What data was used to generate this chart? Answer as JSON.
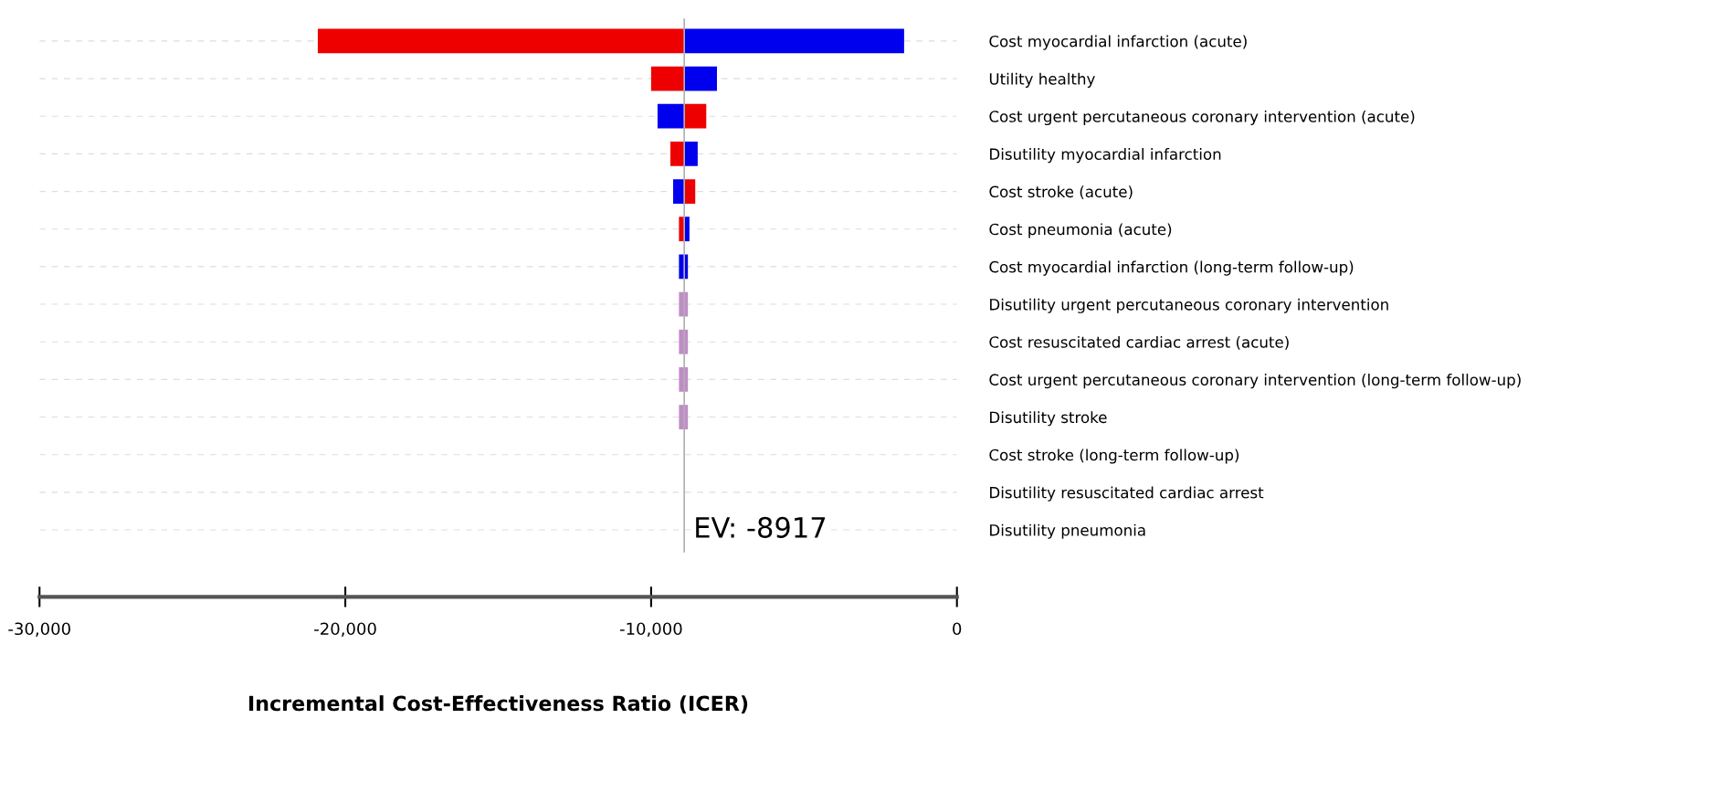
{
  "chart_data": {
    "type": "bar",
    "orientation": "horizontal",
    "xlabel": "Incremental Cost-Effectiveness Ratio (ICER)",
    "categories": [
      "Cost myocardial infarction (acute)",
      "Utility healthy",
      "Cost urgent percutaneous coronary intervention (acute)",
      "Disutility myocardial infarction",
      "Cost stroke (acute)",
      "Cost pneumonia (acute)",
      "Cost myocardial infarction (long-term follow-up)",
      "Disutility urgent percutaneous coronary intervention",
      "Cost resuscitated cardiac arrest (acute)",
      "Cost urgent percutaneous coronary intervention (long-term follow-up)",
      "Disutility stroke",
      "Cost stroke (long-term follow-up)",
      "Disutility resuscitated cardiac arrest",
      "Disutility pneumonia"
    ],
    "series": [
      {
        "base": [
          -20900,
          -10000,
          -9790,
          -9370,
          -9280,
          -9090,
          -9090,
          -9090,
          -9090,
          -9090,
          -9090,
          null,
          null,
          null
        ],
        "values": [
          11980,
          1080,
          870,
          450,
          360,
          170,
          170,
          170,
          170,
          170,
          170,
          null,
          null,
          null
        ],
        "colors": [
          "#ee0000",
          "#ee0000",
          "#0000ee",
          "#ee0000",
          "#0000ee",
          "#ee0000",
          "#0000ee",
          "#c08cc8",
          "#c08cc8",
          "#c08cc8",
          "#c08cc8",
          "#c08cc8",
          "#c08cc8",
          "#c08cc8"
        ]
      },
      {
        "base": [
          -8917,
          -8917,
          -8917,
          -8917,
          -8917,
          -8917,
          -8917,
          -8917,
          -8917,
          -8917,
          -8917,
          null,
          null,
          null
        ],
        "values": [
          7190,
          1070,
          720,
          440,
          360,
          170,
          120,
          120,
          120,
          120,
          120,
          null,
          null,
          null
        ],
        "colors": [
          "#0000ee",
          "#0000ee",
          "#ee0000",
          "#0000ee",
          "#ee0000",
          "#0000ee",
          "#0000ee",
          "#c08cc8",
          "#c08cc8",
          "#c08cc8",
          "#c08cc8",
          "#c08cc8",
          "#c08cc8",
          "#c08cc8"
        ]
      }
    ],
    "xlim": [
      -30000,
      0
    ],
    "xticks": [
      {
        "value": -30000,
        "label": "-30,000"
      },
      {
        "value": -20000,
        "label": "-20,000"
      },
      {
        "value": -10000,
        "label": "-10,000"
      },
      0
    ],
    "ref_lines": [
      {
        "axis": "x",
        "value": -8917,
        "label": "EV: -8917",
        "color": "#b0b0b0"
      }
    ],
    "grid": "y",
    "legend": false
  }
}
